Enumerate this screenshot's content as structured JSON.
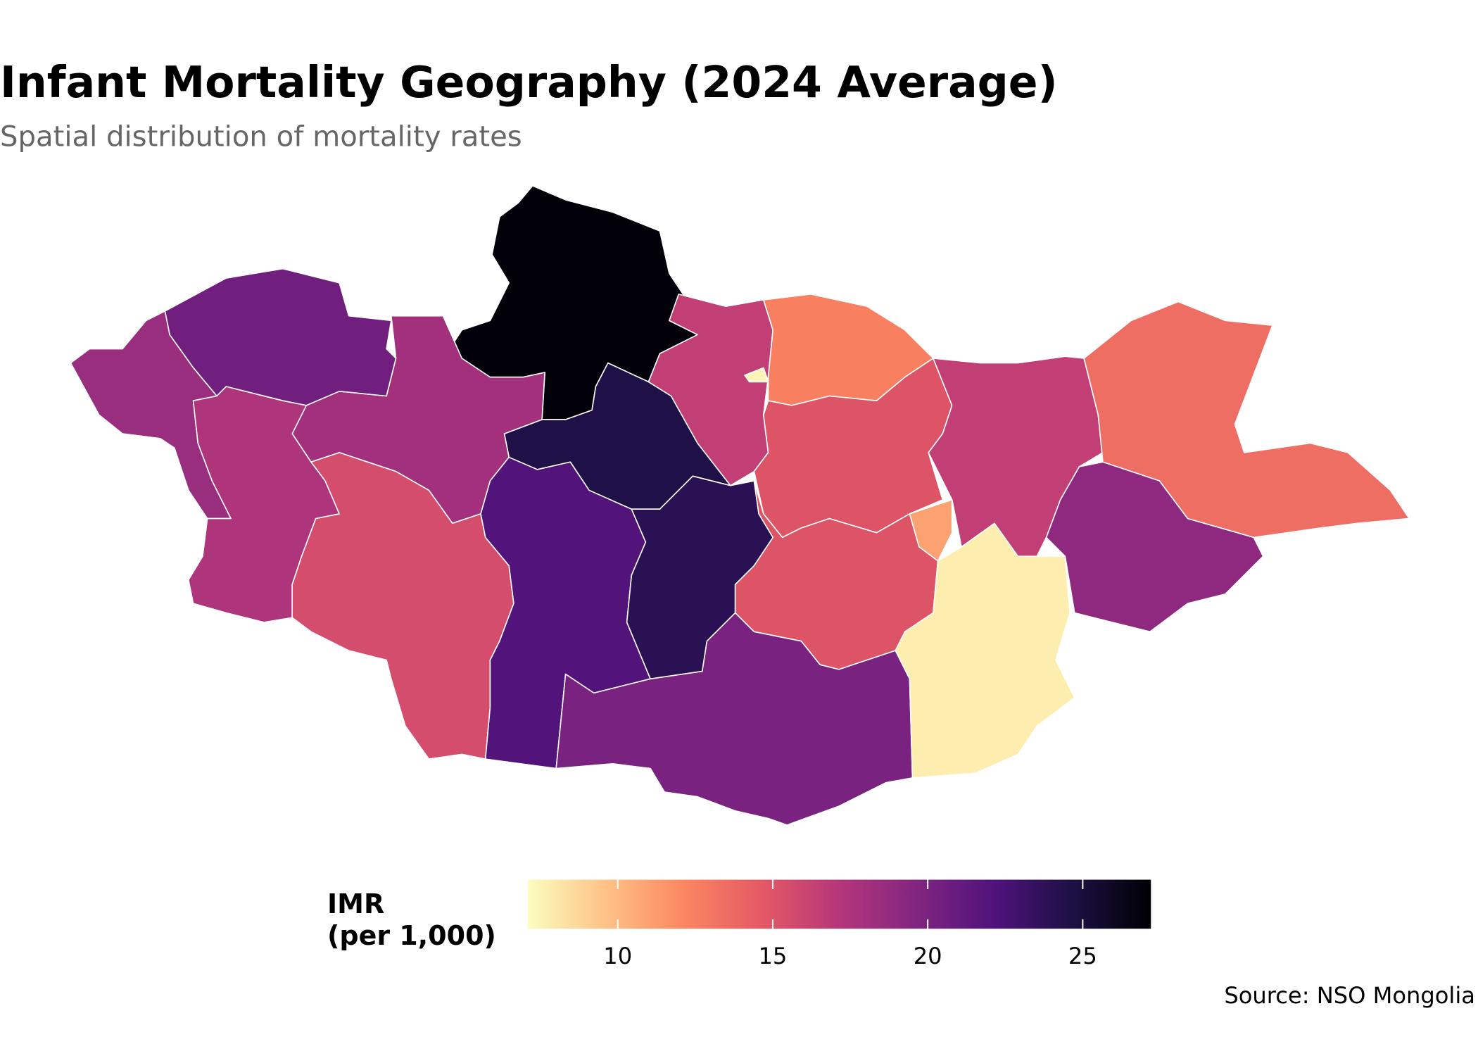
{
  "chart_data": {
    "type": "choropleth",
    "title": "Infant Mortality Geography (2024 Average)",
    "subtitle": "Spatial distribution of mortality rates",
    "legend_title": "IMR\n(per 1,000)",
    "source": "Source: NSO Mongolia",
    "values": [
      27,
      24.5,
      16.5,
      12.5,
      7.5,
      15,
      11,
      18,
      20.5,
      18.5,
      17.5,
      15.5,
      22,
      24,
      15,
      20,
      7.8,
      16.5,
      13.5,
      19
    ],
    "clim": [
      7.1,
      27.2
    ],
    "ticks": [
      10,
      15,
      20,
      25
    ],
    "colorscale": [
      "#fcfdbf",
      "#fec287",
      "#fb8761",
      "#e55964",
      "#b5367a",
      "#812581",
      "#4f127b",
      "#1c1044",
      "#000004"
    ]
  }
}
